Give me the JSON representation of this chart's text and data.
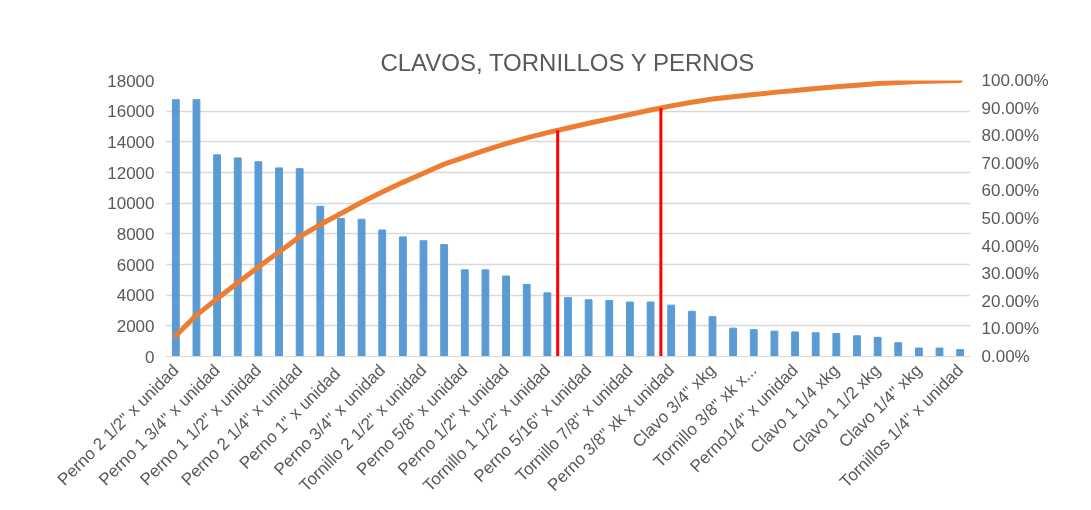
{
  "chart_data": {
    "type": "bar",
    "title": "CLAVOS, TORNILLOS Y PERNOS",
    "categories": [
      "Perno 2 1/2\" x unidad",
      null,
      "Perno 1 3/4\" x unidad",
      null,
      "Perno 1 1/2\" x unidad",
      null,
      "Perno 2 1/4\" x unidad",
      null,
      "Perno 1\" x  unidad",
      null,
      "Perno 3/4\" x unidad",
      null,
      "Tornillo 2 1/2\" x unidad",
      null,
      "Perno 5/8\" x unidad",
      null,
      "Perno 1/2\" x unidad",
      null,
      "Tornillo 1 1/2\" x unidad",
      null,
      "Perno 5/16\" x unidad",
      null,
      "Tornillo 7/8\" x unidad",
      null,
      "Perno 3/8\" xk x unidad",
      null,
      "Clavo 3/4\" xkg",
      null,
      "Tornillo 3/8\" xk x...",
      null,
      "Perno1/4\" x unidad",
      null,
      "Clavo 1 1/4 xkg",
      null,
      "Clavo 1 1/2 xkg",
      null,
      "Clavo 1/4\" xkg",
      null,
      "Tornillos 1/4\" x unidad"
    ],
    "series": [
      {
        "color": "#5b9bd5",
        "values": [
          16750,
          16750,
          13150,
          12950,
          12700,
          12300,
          12250,
          9800,
          9000,
          8950,
          8250,
          7800,
          7550,
          7300,
          5650,
          5650,
          5250,
          4700,
          4150,
          3850,
          3700,
          3650,
          3550,
          3550,
          3350,
          2950,
          2600,
          1850,
          1750,
          1650,
          1600,
          1550,
          1500,
          1350,
          1250,
          900,
          550,
          550,
          450
        ]
      },
      {
        "type": "line",
        "axis": "y2",
        "color": "#ed7d31",
        "values": [
          7.5,
          15.0,
          20.9,
          26.7,
          32.4,
          37.9,
          43.4,
          47.8,
          51.8,
          55.9,
          59.6,
          63.1,
          66.4,
          69.7,
          72.2,
          74.8,
          77.1,
          79.2,
          81.1,
          82.8,
          84.5,
          86.1,
          87.7,
          89.3,
          90.8,
          92.1,
          93.3,
          94.1,
          94.9,
          95.7,
          96.4,
          97.1,
          97.7,
          98.3,
          98.9,
          99.3,
          99.6,
          99.8,
          100
        ]
      }
    ],
    "ylim": [
      0,
      18000
    ],
    "yticks": [
      0,
      2000,
      4000,
      6000,
      8000,
      10000,
      12000,
      14000,
      16000,
      18000
    ],
    "y2lim": [
      0,
      100
    ],
    "y2ticks": [
      {
        "value": 0,
        "label": "0.00%"
      },
      {
        "value": 10,
        "label": "10.00%"
      },
      {
        "value": 20,
        "label": "20.00%"
      },
      {
        "value": 30,
        "label": "30.00%"
      },
      {
        "value": 40,
        "label": "40.00%"
      },
      {
        "value": 50,
        "label": "50.00%"
      },
      {
        "value": 60,
        "label": "60.00%"
      },
      {
        "value": 70,
        "label": "70.00%"
      },
      {
        "value": 80,
        "label": "80.00%"
      },
      {
        "value": 90,
        "label": "90.00%"
      },
      {
        "value": 100,
        "label": "100.00%"
      }
    ],
    "grid": "y"
  }
}
